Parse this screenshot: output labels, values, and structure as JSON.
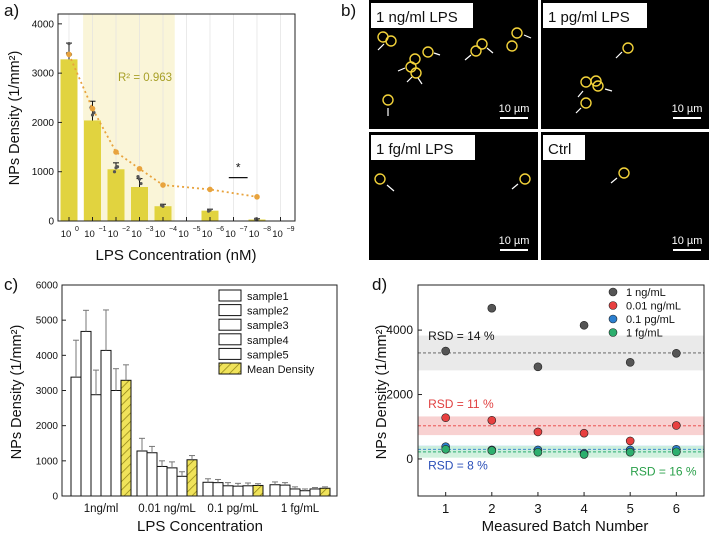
{
  "colors": {
    "bar_yellow": "#e1d33f",
    "band_yellow": "#faf5d8",
    "fit_orange": "#e8a33d",
    "circle_yellow": "#f2d23a",
    "sample_fill": "#ffffff",
    "mean_fill": "#f0e35a",
    "s1": "#555555",
    "s2": "#e84040",
    "s3": "#2c7fcf",
    "s4": "#2daf6e",
    "band_grey": "#e6e6e6",
    "band_red": "#f7c9c9",
    "band_blue": "#cfe6f7",
    "band_green": "#c9efd8",
    "rsd_black": "#111111",
    "rsd_red": "#e04040",
    "rsd_blue": "#2a4fb8",
    "rsd_green": "#2aa04a"
  },
  "chart_data": [
    {
      "panel": "a)",
      "type": "bar",
      "xlabel": "LPS Concentration (nM)",
      "ylabel": "NPs Density (1/mm²)",
      "ylim": [
        0,
        4200
      ],
      "yticks": [
        0,
        1000,
        2000,
        3000,
        4000
      ],
      "x_positions": [
        0,
        1,
        2,
        3,
        4,
        5,
        6,
        7,
        8,
        9
      ],
      "ticks": [
        {
          "base": "10",
          "exp": "0"
        },
        {
          "base": "10",
          "exp": "−1"
        },
        {
          "base": "10",
          "exp": "−2"
        },
        {
          "base": "10",
          "exp": "−3"
        },
        {
          "base": "10",
          "exp": "−4"
        },
        {
          "base": "10",
          "exp": "−5"
        },
        {
          "base": "10",
          "exp": "−6"
        },
        {
          "base": "10",
          "exp": "−7"
        },
        {
          "base": "10",
          "exp": "−8"
        },
        {
          "base": "10",
          "exp": "−9"
        }
      ],
      "bars": [
        {
          "x": 0,
          "value": 3280,
          "err": 330,
          "points": [
            3400,
            3600,
            3380
          ]
        },
        {
          "x": 1,
          "value": 2040,
          "err": 390,
          "points": [
            2300,
            2150,
            2200
          ]
        },
        {
          "x": 2,
          "value": 1050,
          "err": 130,
          "points": [
            1000,
            1080,
            1100
          ]
        },
        {
          "x": 3,
          "value": 690,
          "err": 170,
          "points": [
            900,
            850,
            760
          ]
        },
        {
          "x": 4,
          "value": 300,
          "err": 40,
          "points": [
            320,
            300
          ]
        },
        {
          "x": 6,
          "value": 210,
          "err": 30,
          "points": [
            200,
            220
          ]
        },
        {
          "x": 8,
          "value": 30,
          "err": 15,
          "points": [
            40,
            20
          ]
        }
      ],
      "fit_points": [
        {
          "x": 0,
          "y": 3380
        },
        {
          "x": 1,
          "y": 2280
        },
        {
          "x": 2,
          "y": 1400
        },
        {
          "x": 3,
          "y": 1060
        },
        {
          "x": 4,
          "y": 730
        },
        {
          "x": 6,
          "y": 640
        },
        {
          "x": 8,
          "y": 490
        }
      ],
      "highlight_range": [
        0.6,
        4.5
      ],
      "annotation": "R² = 0.963",
      "significance_mark": "*",
      "significance_range": [
        6.8,
        7.6
      ],
      "significance_y": 880
    },
    {
      "panel": "c)",
      "type": "bar",
      "xlabel": "LPS Concentration",
      "ylabel": "NPs Density (1/mm²)",
      "ylim": [
        0,
        6000
      ],
      "yticks": [
        0,
        1000,
        2000,
        3000,
        4000,
        5000,
        6000
      ],
      "categories": [
        "1ng/ml",
        "0.01 ng/mL",
        "0.1 pg/mL",
        "1 fg/mL"
      ],
      "series": [
        {
          "name": "sample1",
          "values": [
            3380,
            1280,
            390,
            320
          ],
          "err": [
            1050,
            360,
            100,
            80
          ]
        },
        {
          "name": "sample2",
          "values": [
            4680,
            1230,
            380,
            310
          ],
          "err": [
            600,
            180,
            90,
            70
          ]
        },
        {
          "name": "sample3",
          "values": [
            2880,
            840,
            290,
            200
          ],
          "err": [
            700,
            160,
            90,
            60
          ]
        },
        {
          "name": "sample4",
          "values": [
            4140,
            800,
            280,
            150
          ],
          "err": [
            1150,
            170,
            80,
            50
          ]
        },
        {
          "name": "sample5",
          "values": [
            3000,
            560,
            290,
            200
          ],
          "err": [
            620,
            130,
            80,
            40
          ]
        },
        {
          "name": "Mean Density",
          "values": [
            3290,
            1030,
            300,
            220
          ],
          "err": [
            440,
            120,
            50,
            40
          ]
        }
      ]
    },
    {
      "panel": "d)",
      "type": "scatter",
      "xlabel": "Measured Batch Number",
      "ylabel": "NPs Density (1/mm²)",
      "xlim": [
        0.4,
        6.6
      ],
      "ylim": [
        -1150,
        5400
      ],
      "yticks": [
        0,
        2000,
        4000
      ],
      "xticks": [
        1,
        2,
        3,
        4,
        5,
        6
      ],
      "series": [
        {
          "name": "1 ng/mL",
          "color": "s1",
          "x": [
            1,
            2,
            3,
            4,
            5,
            6
          ],
          "y": [
            3350,
            4680,
            2860,
            4150,
            3000,
            3280
          ],
          "mean": 3290,
          "band": [
            2750,
            3830
          ]
        },
        {
          "name": "0.01 ng/mL",
          "color": "s2",
          "x": [
            1,
            2,
            3,
            4,
            5,
            6
          ],
          "y": [
            1280,
            1200,
            840,
            800,
            560,
            1040
          ],
          "mean": 1030,
          "band": [
            740,
            1320
          ]
        },
        {
          "name": "0.1 pg/mL",
          "color": "s3",
          "x": [
            1,
            2,
            3,
            4,
            5,
            6
          ],
          "y": [
            380,
            280,
            280,
            180,
            280,
            300
          ],
          "mean": 300,
          "band": [
            180,
            420
          ]
        },
        {
          "name": "1 fg/mL",
          "color": "s4",
          "x": [
            1,
            2,
            3,
            4,
            5,
            6
          ],
          "y": [
            300,
            260,
            210,
            140,
            210,
            220
          ],
          "mean": 220,
          "band": [
            40,
            400
          ]
        }
      ],
      "rsd_labels": [
        {
          "text": "RSD = 14 %",
          "color": "rsd_black",
          "x": 0.62,
          "y": 3700
        },
        {
          "text": "RSD = 11 %",
          "color": "rsd_red",
          "x": 0.62,
          "y": 1580
        },
        {
          "text": "RSD = 8 %",
          "color": "rsd_blue",
          "x": 0.62,
          "y": -330
        },
        {
          "text": "RSD = 16 %",
          "color": "rsd_green",
          "x": 5.0,
          "y": -510
        }
      ]
    }
  ],
  "panel_b": {
    "label": "b)",
    "tiles": [
      {
        "title": "1 ng/ml LPS",
        "scale": "10 µm",
        "circles": 11
      },
      {
        "title": "1 pg/ml LPS",
        "scale": "10 µm",
        "circles": 5
      },
      {
        "title": "1 fg/ml LPS",
        "scale": "10 µm",
        "circles": 2
      },
      {
        "title": "Ctrl",
        "scale": "10 µm",
        "circles": 1
      }
    ]
  }
}
